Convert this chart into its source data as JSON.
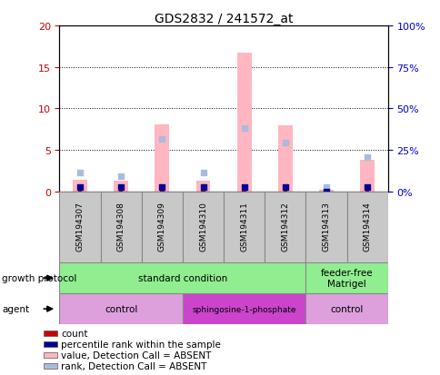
{
  "title": "GDS2832 / 241572_at",
  "samples": [
    "GSM194307",
    "GSM194308",
    "GSM194309",
    "GSM194310",
    "GSM194311",
    "GSM194312",
    "GSM194313",
    "GSM194314"
  ],
  "pink_bars": [
    1.4,
    1.3,
    8.1,
    1.3,
    16.7,
    7.9,
    0.2,
    3.8
  ],
  "blue_squares_rank": [
    11.5,
    9.0,
    31.5,
    11.5,
    38.0,
    29.5,
    2.5,
    20.5
  ],
  "red_bar_values": [
    0.7,
    0.6,
    0.7,
    0.55,
    0.55,
    0.55,
    0.0,
    0.7
  ],
  "blue_dot_values": [
    0.55,
    0.45,
    0.55,
    0.45,
    0.45,
    0.45,
    0.0,
    0.5
  ],
  "ylim_left": [
    0,
    20
  ],
  "ylim_right": [
    0,
    100
  ],
  "yticks_left": [
    0,
    5,
    10,
    15,
    20
  ],
  "yticks_right": [
    0,
    25,
    50,
    75,
    100
  ],
  "ytick_labels_left": [
    "0",
    "5",
    "10",
    "15",
    "20"
  ],
  "ytick_labels_right": [
    "0%",
    "25%",
    "50%",
    "75%",
    "100%"
  ],
  "growth_protocol_groups": [
    {
      "label": "standard condition",
      "start": 0,
      "end": 6,
      "color": "#90EE90"
    },
    {
      "label": "feeder-free\nMatrigel",
      "start": 6,
      "end": 8,
      "color": "#90EE90"
    }
  ],
  "agent_groups": [
    {
      "label": "control",
      "start": 0,
      "end": 3,
      "color": "#DDA0DD"
    },
    {
      "label": "sphingosine-1-phosphate",
      "start": 3,
      "end": 6,
      "color": "#CC44CC"
    },
    {
      "label": "control",
      "start": 6,
      "end": 8,
      "color": "#DDA0DD"
    }
  ],
  "legend_items": [
    {
      "label": "count",
      "color": "#CC0000"
    },
    {
      "label": "percentile rank within the sample",
      "color": "#000099"
    },
    {
      "label": "value, Detection Call = ABSENT",
      "color": "#FFB6C1"
    },
    {
      "label": "rank, Detection Call = ABSENT",
      "color": "#AABBDD"
    }
  ],
  "bar_width": 0.35,
  "pink_color": "#FFB6C1",
  "blue_sq_color": "#AABBDD",
  "red_color": "#CC0000",
  "darkblue_color": "#000099",
  "left_tick_color": "#CC0000",
  "right_tick_color": "#0000CC",
  "grid_color": "#000000",
  "sample_box_color": "#C8C8C8",
  "sample_box_edgecolor": "#888888"
}
